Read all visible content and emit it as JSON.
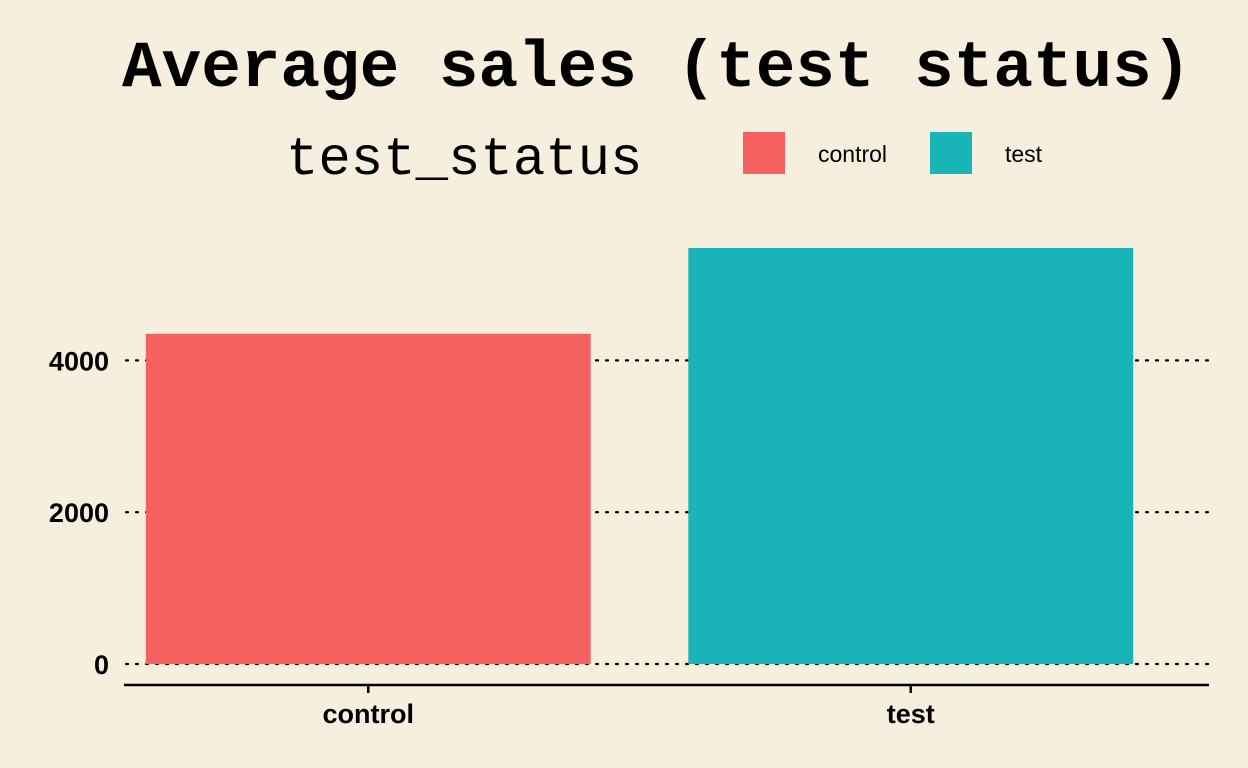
{
  "chart_data": {
    "type": "bar",
    "title": "Average sales (test status)",
    "legend": {
      "title": "test_status",
      "position": "top",
      "entries": [
        {
          "label": "control",
          "color": "#f4615e"
        },
        {
          "label": "test",
          "color": "#19b3b8"
        }
      ]
    },
    "categories": [
      "control",
      "test"
    ],
    "values": [
      4350,
      5480
    ],
    "colors": [
      "#f4615e",
      "#19b3b8"
    ],
    "xlabel": "",
    "ylabel": "",
    "ylim": [
      0,
      5480
    ],
    "yticks": [
      0,
      2000,
      4000
    ],
    "ytick_labels": [
      "0",
      "2000",
      "4000"
    ],
    "grid": "horizontal-dotted",
    "background": "#f6efde"
  }
}
